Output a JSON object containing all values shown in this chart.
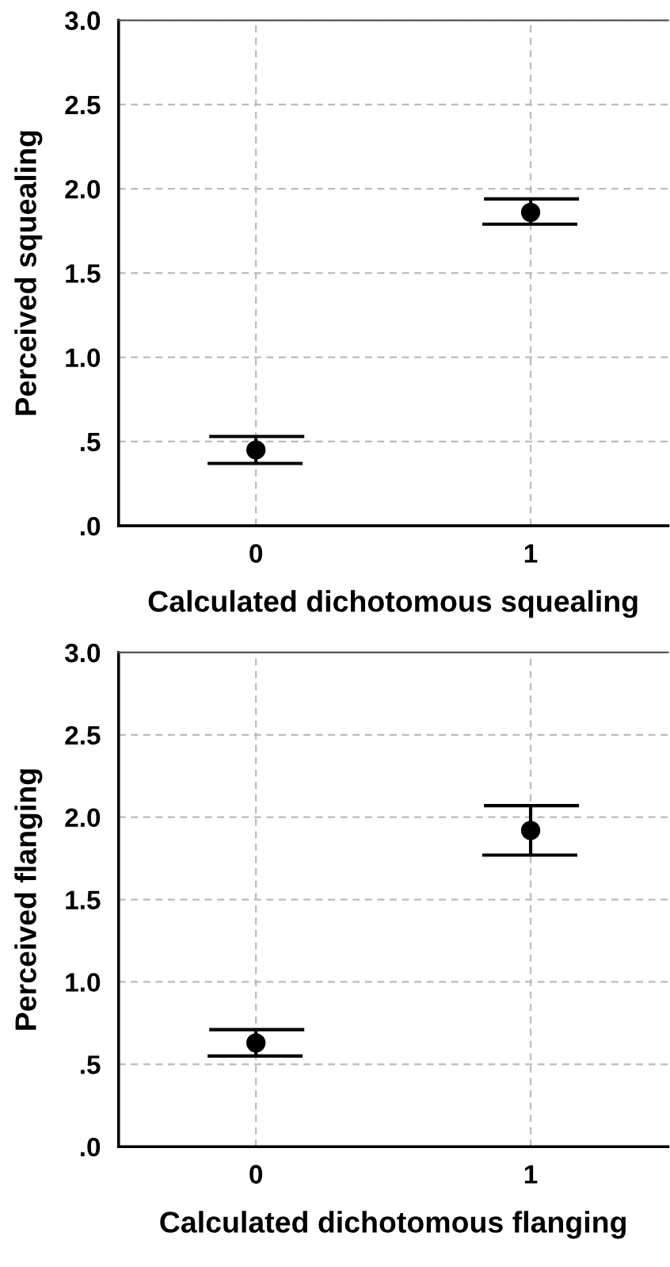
{
  "chart_data": [
    {
      "type": "scatter",
      "xlabel": "Calculated dichotomous squealing",
      "ylabel": "Perceived squealing",
      "categories": [
        "0",
        "1"
      ],
      "values": [
        0.45,
        1.86
      ],
      "errors": [
        [
          0.37,
          0.53
        ],
        [
          1.79,
          1.94
        ]
      ],
      "color": "#000000",
      "marker": "circle",
      "ylim": [
        0,
        3
      ],
      "yticks": [
        {
          "value": 0,
          "label": ".0"
        },
        {
          "value": 0.5,
          "label": ".5"
        },
        {
          "value": 1,
          "label": "1.0"
        },
        {
          "value": 1.5,
          "label": "1.5"
        },
        {
          "value": 2,
          "label": "2.0"
        },
        {
          "value": 2.5,
          "label": "2.5"
        },
        {
          "value": 3,
          "label": "3.0"
        }
      ],
      "grid": true
    },
    {
      "type": "scatter",
      "xlabel": "Calculated dichotomous flanging",
      "ylabel": "Perceived flanging",
      "categories": [
        "0",
        "1"
      ],
      "values": [
        0.63,
        1.92
      ],
      "errors": [
        [
          0.55,
          0.71
        ],
        [
          1.77,
          2.07
        ]
      ],
      "color": "#000000",
      "marker": "circle",
      "ylim": [
        0,
        3
      ],
      "yticks": [
        {
          "value": 0,
          "label": ".0"
        },
        {
          "value": 0.5,
          "label": ".5"
        },
        {
          "value": 1,
          "label": "1.0"
        },
        {
          "value": 1.5,
          "label": "1.5"
        },
        {
          "value": 2,
          "label": "2.0"
        },
        {
          "value": 2.5,
          "label": "2.5"
        },
        {
          "value": 3,
          "label": "3.0"
        }
      ],
      "grid": true
    }
  ]
}
